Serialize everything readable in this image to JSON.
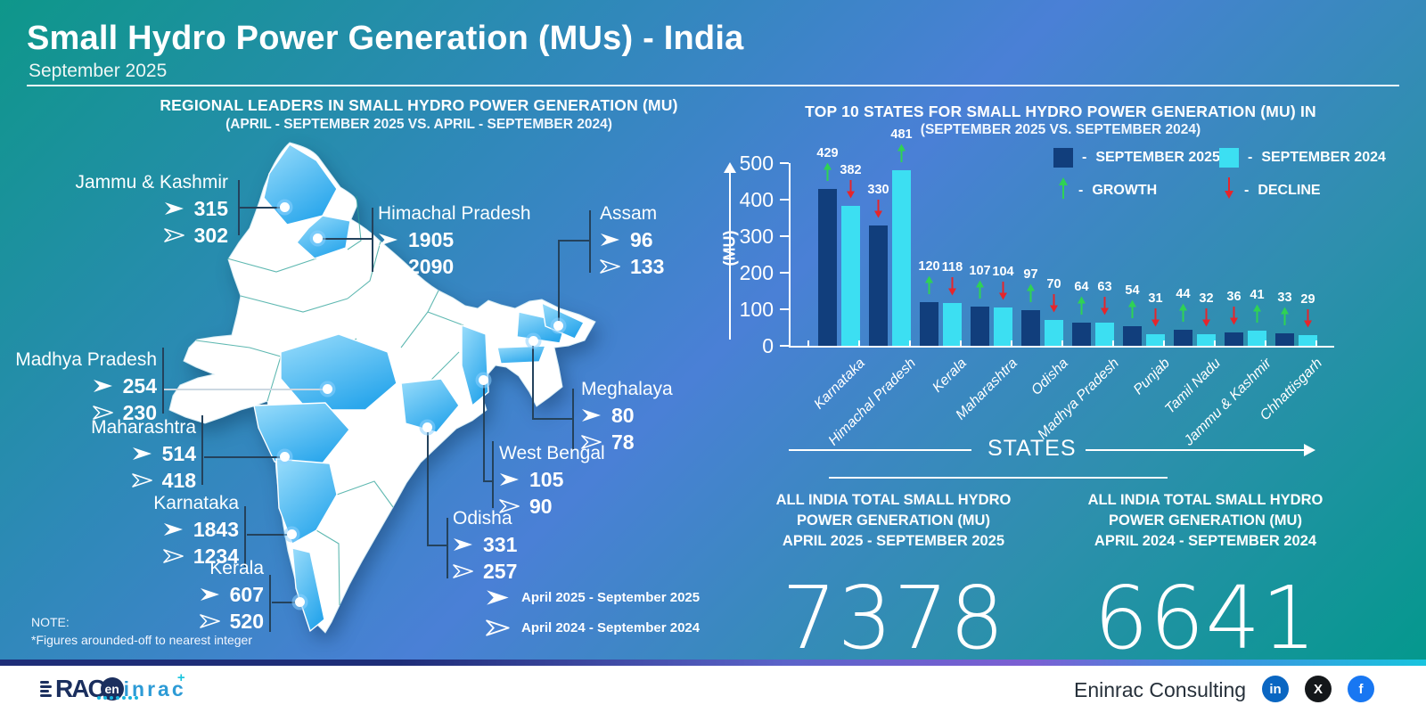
{
  "header": {
    "title": "Small Hydro Power Generation (MUs) - India",
    "subtitle": "September 2025"
  },
  "chart_data": [
    {
      "type": "map",
      "title": "REGIONAL LEADERS IN SMALL HYDRO POWER GENERATION (MU)",
      "subtitle": "(APRIL - SEPTEMBER 2025 VS. APRIL - SEPTEMBER 2024)",
      "unit": "MU",
      "series_labels": [
        "April 2025 - September 2025",
        "April 2024 - September 2024"
      ],
      "note_label": "NOTE:",
      "note": "*Figures arounded-off to nearest integer",
      "states": [
        {
          "name": "Jammu & Kashmir",
          "value_2025": 315,
          "value_2024": 302
        },
        {
          "name": "Himachal Pradesh",
          "value_2025": 1905,
          "value_2024": 2090
        },
        {
          "name": "Assam",
          "value_2025": 96,
          "value_2024": 133
        },
        {
          "name": "Meghalaya",
          "value_2025": 80,
          "value_2024": 78
        },
        {
          "name": "West Bengal",
          "value_2025": 105,
          "value_2024": 90
        },
        {
          "name": "Odisha",
          "value_2025": 331,
          "value_2024": 257
        },
        {
          "name": "Madhya Pradesh",
          "value_2025": 254,
          "value_2024": 230
        },
        {
          "name": "Maharashtra",
          "value_2025": 514,
          "value_2024": 418
        },
        {
          "name": "Karnataka",
          "value_2025": 1843,
          "value_2024": 1234
        },
        {
          "name": "Kerala",
          "value_2025": 607,
          "value_2024": 520
        }
      ]
    },
    {
      "type": "bar",
      "title": "TOP 10 STATES FOR SMALL HYDRO POWER GENERATION (MU) IN",
      "subtitle": "(SEPTEMBER 2025 VS. SEPTEMBER 2024)",
      "categories": [
        "Karnataka",
        "Himachal Pradesh",
        "Kerala",
        "Maharashtra",
        "Odisha",
        "Madhya Pradesh",
        "Punjab",
        "Tamil Nadu",
        "Jammu & Kashmir",
        "Chhattisgarh"
      ],
      "series": [
        {
          "name": "SEPTEMBER 2025",
          "color": "#113e7c",
          "values": [
            429,
            330,
            120,
            107,
            97,
            64,
            54,
            44,
            36,
            33
          ],
          "trend": [
            "up",
            "down",
            "up",
            "up",
            "up",
            "up",
            "up",
            "up",
            "down",
            "up"
          ]
        },
        {
          "name": "SEPTEMBER 2024",
          "color": "#3cdff2",
          "values": [
            382,
            481,
            118,
            104,
            70,
            63,
            31,
            32,
            41,
            29
          ],
          "trend": [
            "down",
            "up",
            "down",
            "down",
            "down",
            "down",
            "down",
            "down",
            "up",
            "down"
          ]
        }
      ],
      "ylabel": "(MU)",
      "xlabel": "STATES",
      "yticks": [
        500,
        400,
        300,
        200,
        100,
        0
      ],
      "ylim": [
        0,
        500
      ],
      "legend": {
        "separator": "-",
        "growth_label": "GROWTH",
        "decline_label": "DECLINE"
      },
      "growth_color": "#2fd254",
      "decline_color": "#e6252b",
      "legend_position": "top-right",
      "grid": false
    }
  ],
  "totals": [
    {
      "l1": "ALL INDIA TOTAL SMALL HYDRO",
      "l2": "POWER GENERATION (MU)",
      "l3": "APRIL 2025 - SEPTEMBER 2025",
      "value": "7378"
    },
    {
      "l1": "ALL INDIA TOTAL SMALL HYDRO",
      "l2": "POWER GENERATION (MU)",
      "l3": "APRIL 2024 - SEPTEMBER 2024",
      "value": "6641"
    }
  ],
  "footer": {
    "company": "Eninrac Consulting",
    "logo_rac": "RAC",
    "logo_en": "en",
    "logo_inrac": "inrac",
    "logo_plus": "+",
    "social": [
      {
        "name": "linkedin",
        "glyph": "in",
        "color": "#0a66c2"
      },
      {
        "name": "x",
        "glyph": "X",
        "color": "#14171a"
      },
      {
        "name": "facebook",
        "glyph": "f",
        "color": "#1877f2"
      }
    ]
  }
}
